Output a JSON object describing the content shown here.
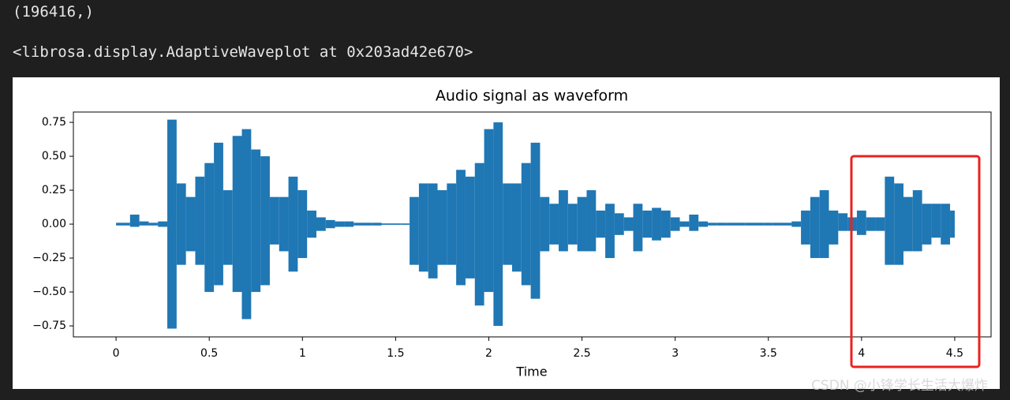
{
  "output": {
    "shape": "(196416,)",
    "repr": "<librosa.display.AdaptiveWaveplot at 0x203ad42e670>"
  },
  "chart_data": {
    "type": "waveform",
    "title": "Audio signal as waveform",
    "x_label": "Time",
    "color": "#1f77b4",
    "x": [
      0,
      0.05,
      0.1,
      0.15,
      0.2,
      0.25,
      0.3,
      0.35,
      0.4,
      0.45,
      0.5,
      0.55,
      0.6,
      0.65,
      0.7,
      0.75,
      0.8,
      0.85,
      0.9,
      0.95,
      1,
      1.05,
      1.1,
      1.15,
      1.2,
      1.25,
      1.3,
      1.35,
      1.4,
      1.45,
      1.5,
      1.55,
      1.6,
      1.65,
      1.7,
      1.75,
      1.8,
      1.85,
      1.9,
      1.95,
      2,
      2.05,
      2.1,
      2.15,
      2.2,
      2.25,
      2.3,
      2.35,
      2.4,
      2.45,
      2.5,
      2.55,
      2.6,
      2.65,
      2.7,
      2.75,
      2.8,
      2.85,
      2.9,
      2.95,
      3,
      3.05,
      3.1,
      3.15,
      3.2,
      3.25,
      3.3,
      3.35,
      3.4,
      3.45,
      3.5,
      3.55,
      3.6,
      3.65,
      3.7,
      3.75,
      3.8,
      3.85,
      3.9,
      3.95,
      4,
      4.05,
      4.1,
      4.15,
      4.2,
      4.25,
      4.3,
      4.35,
      4.4,
      4.45,
      4.5
    ],
    "upper": [
      0.01,
      0.01,
      0.07,
      0.02,
      0.01,
      0.02,
      0.77,
      0.3,
      0.2,
      0.35,
      0.45,
      0.6,
      0.25,
      0.65,
      0.7,
      0.55,
      0.5,
      0.2,
      0.2,
      0.35,
      0.25,
      0.1,
      0.05,
      0.03,
      0.02,
      0.02,
      0.01,
      0.01,
      0.01,
      0.005,
      0.005,
      0.005,
      0.2,
      0.3,
      0.3,
      0.25,
      0.3,
      0.4,
      0.35,
      0.45,
      0.7,
      0.75,
      0.3,
      0.3,
      0.45,
      0.6,
      0.2,
      0.15,
      0.25,
      0.15,
      0.2,
      0.25,
      0.1,
      0.15,
      0.08,
      0.05,
      0.15,
      0.1,
      0.12,
      0.1,
      0.05,
      0.02,
      0.07,
      0.02,
      0.01,
      0.01,
      0.01,
      0.01,
      0.01,
      0.01,
      0.01,
      0.01,
      0.01,
      0.02,
      0.1,
      0.2,
      0.25,
      0.1,
      0.08,
      0.05,
      0.1,
      0.05,
      0.05,
      0.35,
      0.3,
      0.2,
      0.25,
      0.15,
      0.15,
      0.15,
      0.1
    ],
    "lower": [
      -0.01,
      -0.01,
      -0.02,
      -0.01,
      -0.01,
      -0.02,
      -0.77,
      -0.3,
      -0.2,
      -0.3,
      -0.5,
      -0.45,
      -0.3,
      -0.5,
      -0.7,
      -0.5,
      -0.45,
      -0.15,
      -0.2,
      -0.35,
      -0.25,
      -0.1,
      -0.05,
      -0.03,
      -0.02,
      -0.02,
      -0.01,
      -0.01,
      -0.01,
      -0.005,
      -0.005,
      -0.005,
      -0.3,
      -0.35,
      -0.4,
      -0.3,
      -0.3,
      -0.45,
      -0.4,
      -0.6,
      -0.5,
      -0.75,
      -0.3,
      -0.35,
      -0.45,
      -0.55,
      -0.2,
      -0.15,
      -0.2,
      -0.15,
      -0.2,
      -0.2,
      -0.1,
      -0.25,
      -0.08,
      -0.05,
      -0.2,
      -0.1,
      -0.12,
      -0.1,
      -0.05,
      -0.02,
      -0.05,
      -0.02,
      -0.01,
      -0.01,
      -0.01,
      -0.01,
      -0.01,
      -0.01,
      -0.01,
      -0.01,
      -0.01,
      -0.02,
      -0.15,
      -0.25,
      -0.25,
      -0.15,
      -0.05,
      -0.05,
      -0.08,
      -0.05,
      -0.05,
      -0.3,
      -0.3,
      -0.2,
      -0.2,
      -0.15,
      -0.1,
      -0.15,
      -0.1
    ],
    "xlim": [
      -0.229,
      4.695
    ],
    "ylim": [
      -0.831,
      0.826
    ],
    "xticks": [
      0,
      0.5,
      1,
      1.5,
      2,
      2.5,
      3,
      3.5,
      4,
      4.5
    ],
    "yticks": [
      {
        "value": -0.75,
        "label": "−0.75"
      },
      {
        "value": -0.5,
        "label": "−0.50"
      },
      {
        "value": -0.25,
        "label": "−0.25"
      },
      {
        "value": 0,
        "label": "0.00"
      },
      {
        "value": 0.25,
        "label": "0.25"
      },
      {
        "value": 0.5,
        "label": "0.50"
      },
      {
        "value": 0.75,
        "label": "0.75"
      }
    ]
  },
  "watermark": "CSDN @小锋学长生活大爆炸"
}
